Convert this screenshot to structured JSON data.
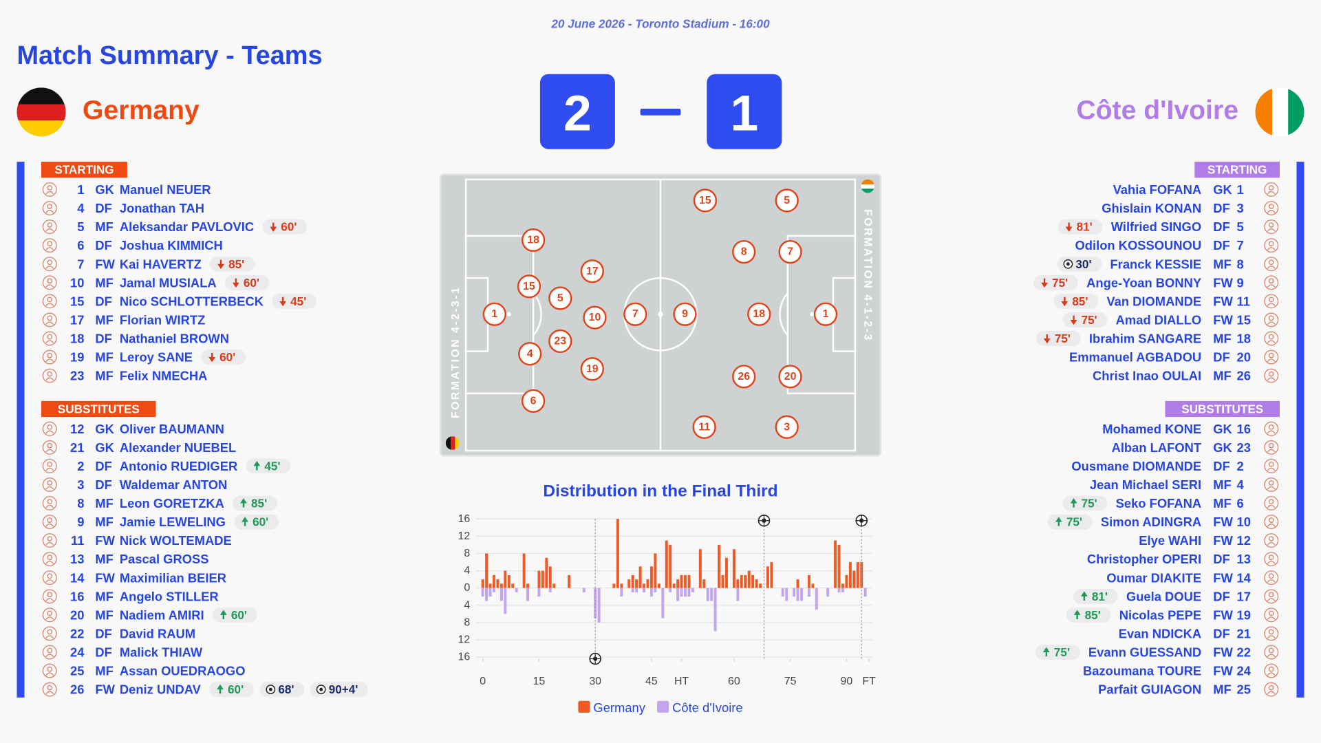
{
  "header": {
    "date_line": "20 June 2026 - Toronto Stadium - 16:00",
    "title": "Match Summary - Teams"
  },
  "home": {
    "name": "Germany",
    "score": 2,
    "starting_label": "STARTING",
    "subs_label": "SUBSTITUTES",
    "starting": [
      {
        "number": 1,
        "position": "GK",
        "name": "Manuel NEUER"
      },
      {
        "number": 4,
        "position": "DF",
        "name": "Jonathan TAH"
      },
      {
        "number": 5,
        "position": "MF",
        "name": "Aleksandar PAVLOVIC",
        "events": [
          {
            "type": "out",
            "minute": "60'"
          }
        ]
      },
      {
        "number": 6,
        "position": "DF",
        "name": "Joshua KIMMICH"
      },
      {
        "number": 7,
        "position": "FW",
        "name": "Kai HAVERTZ",
        "events": [
          {
            "type": "out",
            "minute": "85'"
          }
        ]
      },
      {
        "number": 10,
        "position": "MF",
        "name": "Jamal MUSIALA",
        "events": [
          {
            "type": "out",
            "minute": "60'"
          }
        ]
      },
      {
        "number": 15,
        "position": "DF",
        "name": "Nico SCHLOTTERBECK",
        "events": [
          {
            "type": "out",
            "minute": "45'"
          }
        ]
      },
      {
        "number": 17,
        "position": "MF",
        "name": "Florian WIRTZ"
      },
      {
        "number": 18,
        "position": "DF",
        "name": "Nathaniel BROWN"
      },
      {
        "number": 19,
        "position": "MF",
        "name": "Leroy SANE",
        "events": [
          {
            "type": "out",
            "minute": "60'"
          }
        ]
      },
      {
        "number": 23,
        "position": "MF",
        "name": "Felix NMECHA"
      }
    ],
    "substitutes": [
      {
        "number": 12,
        "position": "GK",
        "name": "Oliver BAUMANN"
      },
      {
        "number": 21,
        "position": "GK",
        "name": "Alexander NUEBEL"
      },
      {
        "number": 2,
        "position": "DF",
        "name": "Antonio RUEDIGER",
        "events": [
          {
            "type": "in",
            "minute": "45'"
          }
        ]
      },
      {
        "number": 3,
        "position": "DF",
        "name": "Waldemar ANTON"
      },
      {
        "number": 8,
        "position": "MF",
        "name": "Leon GORETZKA",
        "events": [
          {
            "type": "in",
            "minute": "85'"
          }
        ]
      },
      {
        "number": 9,
        "position": "MF",
        "name": "Jamie LEWELING",
        "events": [
          {
            "type": "in",
            "minute": "60'"
          }
        ]
      },
      {
        "number": 11,
        "position": "FW",
        "name": "Nick WOLTEMADE"
      },
      {
        "number": 13,
        "position": "MF",
        "name": "Pascal GROSS"
      },
      {
        "number": 14,
        "position": "FW",
        "name": "Maximilian BEIER"
      },
      {
        "number": 16,
        "position": "MF",
        "name": "Angelo STILLER"
      },
      {
        "number": 20,
        "position": "MF",
        "name": "Nadiem AMIRI",
        "events": [
          {
            "type": "in",
            "minute": "60'"
          }
        ]
      },
      {
        "number": 22,
        "position": "DF",
        "name": "David RAUM"
      },
      {
        "number": 24,
        "position": "DF",
        "name": "Malick THIAW"
      },
      {
        "number": 25,
        "position": "MF",
        "name": "Assan OUEDRAOGO"
      },
      {
        "number": 26,
        "position": "FW",
        "name": "Deniz UNDAV",
        "events": [
          {
            "type": "in",
            "minute": "60'"
          },
          {
            "type": "goal",
            "minute": "68'"
          },
          {
            "type": "goal",
            "minute": "90+4'"
          }
        ]
      }
    ]
  },
  "away": {
    "name": "Côte d'Ivoire",
    "score": 1,
    "starting_label": "STARTING",
    "subs_label": "SUBSTITUTES",
    "starting": [
      {
        "number": 1,
        "position": "GK",
        "name": "Vahia FOFANA"
      },
      {
        "number": 3,
        "position": "DF",
        "name": "Ghislain KONAN"
      },
      {
        "number": 5,
        "position": "DF",
        "name": "Wilfried SINGO",
        "events": [
          {
            "type": "out",
            "minute": "81'"
          }
        ]
      },
      {
        "number": 7,
        "position": "DF",
        "name": "Odilon KOSSOUNOU"
      },
      {
        "number": 8,
        "position": "MF",
        "name": "Franck KESSIE",
        "events": [
          {
            "type": "goal",
            "minute": "30'"
          }
        ]
      },
      {
        "number": 9,
        "position": "FW",
        "name": "Ange-Yoan BONNY",
        "events": [
          {
            "type": "out",
            "minute": "75'"
          }
        ]
      },
      {
        "number": 11,
        "position": "FW",
        "name": "Van DIOMANDE",
        "events": [
          {
            "type": "out",
            "minute": "85'"
          }
        ]
      },
      {
        "number": 15,
        "position": "FW",
        "name": "Amad DIALLO",
        "events": [
          {
            "type": "out",
            "minute": "75'"
          }
        ]
      },
      {
        "number": 18,
        "position": "MF",
        "name": "Ibrahim SANGARE",
        "events": [
          {
            "type": "out",
            "minute": "75'"
          }
        ]
      },
      {
        "number": 20,
        "position": "DF",
        "name": "Emmanuel AGBADOU"
      },
      {
        "number": 26,
        "position": "MF",
        "name": "Christ Inao OULAI"
      }
    ],
    "substitutes": [
      {
        "number": 16,
        "position": "GK",
        "name": "Mohamed KONE"
      },
      {
        "number": 23,
        "position": "GK",
        "name": "Alban LAFONT"
      },
      {
        "number": 2,
        "position": "DF",
        "name": "Ousmane DIOMANDE"
      },
      {
        "number": 4,
        "position": "MF",
        "name": "Jean Michael SERI"
      },
      {
        "number": 6,
        "position": "MF",
        "name": "Seko FOFANA",
        "events": [
          {
            "type": "in",
            "minute": "75'"
          }
        ]
      },
      {
        "number": 10,
        "position": "FW",
        "name": "Simon ADINGRA",
        "events": [
          {
            "type": "in",
            "minute": "75'"
          }
        ]
      },
      {
        "number": 12,
        "position": "FW",
        "name": "Elye WAHI"
      },
      {
        "number": 13,
        "position": "DF",
        "name": "Christopher OPERI"
      },
      {
        "number": 14,
        "position": "FW",
        "name": "Oumar DIAKITE"
      },
      {
        "number": 17,
        "position": "DF",
        "name": "Guela DOUE",
        "events": [
          {
            "type": "in",
            "minute": "81'"
          }
        ]
      },
      {
        "number": 19,
        "position": "FW",
        "name": "Nicolas PEPE",
        "events": [
          {
            "type": "in",
            "minute": "85'"
          }
        ]
      },
      {
        "number": 21,
        "position": "DF",
        "name": "Evan NDICKA"
      },
      {
        "number": 22,
        "position": "FW",
        "name": "Evann GUESSAND",
        "events": [
          {
            "type": "in",
            "minute": "75'"
          }
        ]
      },
      {
        "number": 24,
        "position": "FW",
        "name": "Bazoumana TOURE"
      },
      {
        "number": 25,
        "position": "MF",
        "name": "Parfait GUIAGON"
      }
    ]
  },
  "pitch": {
    "home_formation": "FORMATION 4-2-3-1",
    "away_formation": "FORMATION 4-1-2-3",
    "home_tokens": [
      1,
      18,
      15,
      5,
      4,
      6,
      17,
      10,
      23,
      19,
      7
    ],
    "away_tokens": [
      1,
      18,
      20,
      26,
      8,
      7,
      9,
      15,
      5,
      11,
      3
    ]
  },
  "chart_data": {
    "type": "bar",
    "title": "Distribution in the Final Third",
    "grid": true,
    "xlim": [
      0,
      104
    ],
    "xticks": [
      0,
      15,
      30,
      45,
      {
        "value": 53,
        "label": "HT"
      },
      {
        "value": 67,
        "label": "60"
      },
      {
        "value": 82,
        "label": "75"
      },
      {
        "value": 97,
        "label": "90"
      },
      {
        "value": 103,
        "label": "FT"
      }
    ],
    "ylim": [
      -16,
      16
    ],
    "yticks": [
      {
        "value": -16,
        "label": "16"
      },
      {
        "value": -12,
        "label": "12"
      },
      {
        "value": -8,
        "label": "8"
      },
      {
        "value": -4,
        "label": "4"
      },
      0,
      4,
      8,
      12,
      16
    ],
    "series": [
      {
        "name": "Germany",
        "color": "#ef5a24",
        "goals": [
          75,
          101
        ],
        "x": [
          0,
          1,
          2,
          3,
          4,
          5,
          6,
          7,
          8,
          11,
          12,
          15,
          16,
          17,
          18,
          19,
          23,
          35,
          36,
          37,
          39,
          40,
          41,
          42,
          43,
          44,
          45,
          46,
          47,
          49,
          50,
          51,
          52,
          53,
          54,
          55,
          58,
          59,
          63,
          64,
          65,
          67,
          68,
          69,
          70,
          71,
          72,
          73,
          74,
          76,
          77,
          84,
          87,
          88,
          94,
          95,
          96,
          97,
          98,
          99,
          100,
          101
        ],
        "values": [
          2,
          8,
          1,
          3,
          2,
          1,
          4,
          3,
          1,
          8,
          1,
          4,
          4,
          7,
          5,
          1,
          3,
          1,
          16,
          1,
          2,
          3,
          2,
          5,
          1,
          2,
          5,
          8,
          1,
          11,
          10,
          1,
          2,
          3,
          3,
          3,
          9,
          2,
          10,
          3,
          7,
          9,
          2,
          3,
          3,
          4,
          3,
          2,
          1,
          5,
          6,
          2,
          3,
          1,
          11,
          10,
          1,
          3,
          6,
          4,
          6,
          6
        ]
      },
      {
        "name": "Côte d'Ivoire",
        "color": "#c4a3ef",
        "goals": [
          30
        ],
        "x": [
          0,
          1,
          2,
          3,
          5,
          6,
          9,
          12,
          15,
          18,
          27,
          30,
          31,
          37,
          40,
          41,
          43,
          45,
          46,
          48,
          50,
          52,
          53,
          54,
          55,
          56,
          60,
          61,
          62,
          68,
          80,
          81,
          83,
          84,
          85,
          87,
          89,
          92,
          95,
          96,
          102
        ],
        "values": [
          -2,
          -3,
          -2,
          -1,
          -3,
          -6,
          -1,
          -3,
          -2,
          -1,
          -1,
          -7,
          -8,
          -2,
          -1,
          -1,
          -1,
          -2,
          -1,
          -7,
          -1,
          -3,
          -2,
          -2,
          -2,
          -1,
          -3,
          -3,
          -10,
          -3,
          -2,
          -3,
          -2,
          -3,
          -3,
          -2,
          -5,
          -2,
          -1,
          -1,
          -2
        ]
      }
    ]
  }
}
